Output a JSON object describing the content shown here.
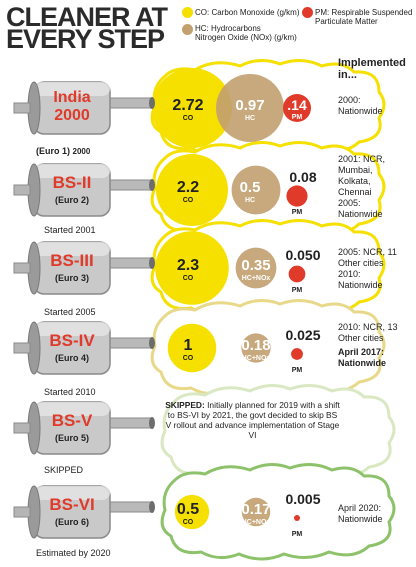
{
  "chart_data": {
    "type": "bubble",
    "title_lines": [
      "CLEANER AT",
      "EVERY STEP"
    ],
    "legend": [
      {
        "key": "CO",
        "label": "CO: Carbon Monoxide (g/km)",
        "color": "#f5e000"
      },
      {
        "key": "HC",
        "label_lines": [
          "HC: Hydrocarbons",
          "Nitrogen Oxide (NOx) (g/km)"
        ],
        "color": "#c2a070"
      },
      {
        "key": "PM",
        "label_lines": [
          "PM: Respirable Suspended",
          "Particulate Matter"
        ],
        "color": "#e03a2a"
      }
    ],
    "implemented_header": "Implemented in...",
    "stages": [
      {
        "name_lines": [
          "India",
          "2000"
        ],
        "sub": "(Euro 1)",
        "sub_suffix": "2000",
        "status": "",
        "co": 2.72,
        "co_label": "2.72",
        "hc": 0.97,
        "hc_label": "0.97",
        "hc_unit": "HC",
        "pm": 0.14,
        "pm_label": ".14",
        "implemented": "2000:\nNationwide"
      },
      {
        "name_lines": [
          "BS-II"
        ],
        "sub": "(Euro 2)",
        "status": "Started 2001",
        "co": 2.2,
        "co_label": "2.2",
        "hc": 0.5,
        "hc_label": "0.5",
        "hc_unit": "HC",
        "pm": 0.08,
        "pm_label": "0.08",
        "implemented": "2001: NCR,\nMumbai,\nKolkata,\nChennai\n2005:\nNationwide"
      },
      {
        "name_lines": [
          "BS-III"
        ],
        "sub": "(Euro 3)",
        "status": "Started 2005",
        "co": 2.3,
        "co_label": "2.3",
        "hc": 0.35,
        "hc_label": "0.35",
        "hc_unit": "HC+NOx",
        "pm": 0.05,
        "pm_label": "0.050",
        "implemented": "2005: NCR, 11\nOther cities\n2010:\nNationwide"
      },
      {
        "name_lines": [
          "BS-IV"
        ],
        "sub": "(Euro 4)",
        "status": "Started 2010",
        "co": 1,
        "co_label": "1",
        "hc": 0.18,
        "hc_label": "0.18",
        "hc_unit": "HC+NOx",
        "pm": 0.025,
        "pm_label": "0.025",
        "implemented": "2010: NCR, 13\nOther cities",
        "implemented_bold": "April 2017:\nNationwide"
      },
      {
        "name_lines": [
          "BS-V"
        ],
        "sub": "(Euro 5)",
        "status": "SKIPPED",
        "skipped_head": "SKIPPED:",
        "skipped_note": "Initially planned for 2019 with a shift to BS-VI by 2021, the govt decided to skip BS V rollout and advance implementation of Stage VI"
      },
      {
        "name_lines": [
          "BS-VI"
        ],
        "sub": "(Euro 6)",
        "status": "Estimated by 2020",
        "co": 0.5,
        "co_label": "0.5",
        "hc": 0.17,
        "hc_label": "0.17",
        "hc_unit": "HC+NOx",
        "pm": 0.005,
        "pm_label": "0.005",
        "implemented": "April 2020:\nNationwide"
      }
    ],
    "unit_labels": {
      "co": "CO",
      "pm": "PM"
    },
    "colors": {
      "cloud_fill": "#ffffff",
      "cloud_border": [
        "#f5e000",
        "#f5e000",
        "#f5e000",
        "#e8d98a",
        "#d9e8c2",
        "#8dc26a"
      ],
      "pipe_body": "#c9c9c9",
      "label_red": "#e03a2a"
    }
  }
}
